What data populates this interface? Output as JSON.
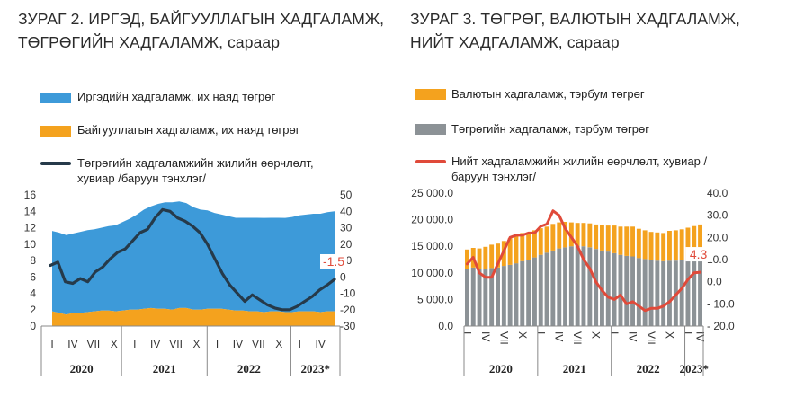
{
  "chart_data": [
    {
      "type": "area",
      "title": "ЗУРАГ 2.    ИРГЭД, БАЙГУУЛЛАГЫН ХАДГАЛАМЖ, ТӨГРӨГИЙН ХАДГАЛАМЖ, сараар",
      "legend": [
        {
          "label": "Иргэдийн хадгаламж, их наяд төгрөг",
          "color": "#3d9ad9"
        },
        {
          "label": "Байгууллагын хадгаламж, их наяд төгрөг",
          "color": "#f4a21e"
        },
        {
          "label": "Төгрөгийн хадгаламжийн жилийн өөрчлөлт, хувиар /баруун тэнхлэг/",
          "color": "#263a4a"
        }
      ],
      "yticks_left": [
        "16",
        "14",
        "12",
        "10",
        "8",
        "6",
        "4",
        "2",
        "0"
      ],
      "yticks_right": [
        "50",
        "40",
        "30",
        "20",
        "10",
        "0",
        "-10",
        "-20",
        "-30"
      ],
      "ylim_left": [
        0,
        16
      ],
      "ylim_right": [
        -30,
        50
      ],
      "xticks": [
        "I",
        "IV",
        "VII",
        "X",
        "I",
        "IV",
        "VII",
        "X",
        "I",
        "IV",
        "VII",
        "X",
        "I",
        "IV"
      ],
      "years": [
        "2020",
        "2021",
        "2022",
        "2023*"
      ],
      "annotation": "-1.5",
      "series": [
        {
          "name": "Иргэдийн хадгаламж, их наяд төгрөг",
          "values": [
            9.8,
            9.8,
            9.7,
            9.7,
            9.9,
            10.0,
            10.0,
            10.1,
            10.3,
            10.5,
            10.8,
            11.1,
            11.6,
            12.1,
            12.4,
            12.8,
            13.0,
            13.1,
            13.0,
            12.8,
            12.5,
            12.2,
            12.0,
            11.7,
            11.5,
            11.4,
            11.3,
            11.3,
            11.4,
            11.4,
            11.5,
            11.4,
            11.4,
            11.5,
            11.6,
            11.7,
            11.8,
            11.9,
            12.0,
            12.1,
            12.2
          ]
        },
        {
          "name": "Байгууллагын хадгаламж, их наяд төгрөг",
          "values": [
            1.8,
            1.6,
            1.4,
            1.6,
            1.6,
            1.7,
            1.8,
            1.9,
            1.9,
            1.8,
            1.9,
            2.0,
            2.0,
            2.1,
            2.2,
            2.1,
            2.1,
            2.0,
            2.2,
            2.2,
            2.0,
            2.0,
            2.1,
            2.1,
            2.1,
            2.0,
            1.9,
            1.9,
            1.8,
            1.8,
            1.7,
            1.8,
            1.8,
            1.7,
            1.7,
            1.8,
            1.8,
            1.8,
            1.7,
            1.8,
            1.8
          ]
        },
        {
          "name": "Төгрөгийн хадгаламжийн жилийн өөрчлөлт, хувиар /баруун тэнхлэг/",
          "values": [
            7.0,
            9.0,
            -3.0,
            -4.0,
            -1.0,
            -3.0,
            3.0,
            6.0,
            11.0,
            15.0,
            17.0,
            22.0,
            27.0,
            29.0,
            36.0,
            41.0,
            40.0,
            36.0,
            34.0,
            31.0,
            27.0,
            20.0,
            11.0,
            2.0,
            -5.0,
            -10.0,
            -15.0,
            -11.0,
            -14.0,
            -17.0,
            -19.0,
            -20.0,
            -20.0,
            -18.0,
            -15.0,
            -12.0,
            -8.0,
            -5.0,
            -1.5
          ]
        }
      ]
    },
    {
      "type": "bar",
      "title": "ЗУРАГ 3.   ТӨГРӨГ, ВАЛЮТЫН ХАДГАЛАМЖ, НИЙТ ХАДГАЛАМЖ, сараар",
      "legend": [
        {
          "label": "Валютын хадгаламж, тэрбум төгрөг",
          "color": "#f4a21e"
        },
        {
          "label": "Төгрөгийн хадгаламж, тэрбум төгрөг",
          "color": "#8c9296"
        },
        {
          "label": "Нийт хадгаламжийн жилийн өөрчлөлт, хувиар /баруун тэнхлэг/",
          "color": "#e04a3a"
        }
      ],
      "yticks_left": [
        "25 000.0",
        "20 000.0",
        "15 000.0",
        "10 000.0",
        "5 000.0",
        "0.0"
      ],
      "yticks_right": [
        "40.0",
        "30.0",
        "20.0",
        "10.0",
        "0.0",
        "- 10.0",
        "- 20.0"
      ],
      "ylim_left": [
        0,
        25000
      ],
      "ylim_right": [
        -20,
        40
      ],
      "xticks": [
        "I",
        "IV",
        "VII",
        "X",
        "I",
        "IV",
        "VII",
        "X",
        "I",
        "IV",
        "VII",
        "X",
        "I",
        "IV"
      ],
      "years": [
        "2020",
        "2021",
        "2022",
        "2023*"
      ],
      "annotation": "4.3",
      "series": [
        {
          "name": "Төгрөгийн хадгаламж, тэрбум төгрөг",
          "values": [
            10800,
            11000,
            10800,
            10700,
            10900,
            11000,
            11300,
            11500,
            11800,
            12200,
            12500,
            12900,
            13400,
            13800,
            14200,
            14600,
            14800,
            15000,
            15100,
            15000,
            14800,
            14500,
            14200,
            14000,
            13700,
            13400,
            13200,
            13100,
            12800,
            12600,
            12400,
            12300,
            12200,
            12300,
            12300,
            12400,
            12500,
            12600,
            12800
          ]
        },
        {
          "name": "Валютын хадгаламж, тэрбум төгрөг",
          "values": [
            3600,
            3700,
            3800,
            4200,
            4400,
            4500,
            4700,
            5000,
            5200,
            5300,
            5100,
            5100,
            5000,
            4900,
            5000,
            4900,
            4800,
            4500,
            4300,
            4400,
            4500,
            4600,
            4800,
            4900,
            5200,
            5300,
            5500,
            5600,
            5500,
            5400,
            5300,
            5300,
            5300,
            5600,
            5700,
            5800,
            6000,
            6200,
            6300
          ]
        },
        {
          "name": "Нийт хадгаламжийн жилийн өөрчлөлт, хувиар /баруун тэнхлэг/",
          "values": [
            8.0,
            11.0,
            4.0,
            2.0,
            2.0,
            8.0,
            14.0,
            20.0,
            21.0,
            21.0,
            22.0,
            22.0,
            25.0,
            26.0,
            32.0,
            30.0,
            24.0,
            20.0,
            16.0,
            10.0,
            6.0,
            0.0,
            -4.0,
            -7.0,
            -8.0,
            -6.0,
            -10.0,
            -9.0,
            -11.0,
            -13.0,
            -12.0,
            -12.0,
            -11.0,
            -9.0,
            -6.0,
            -3.0,
            1.0,
            4.0,
            4.3
          ]
        }
      ]
    }
  ]
}
